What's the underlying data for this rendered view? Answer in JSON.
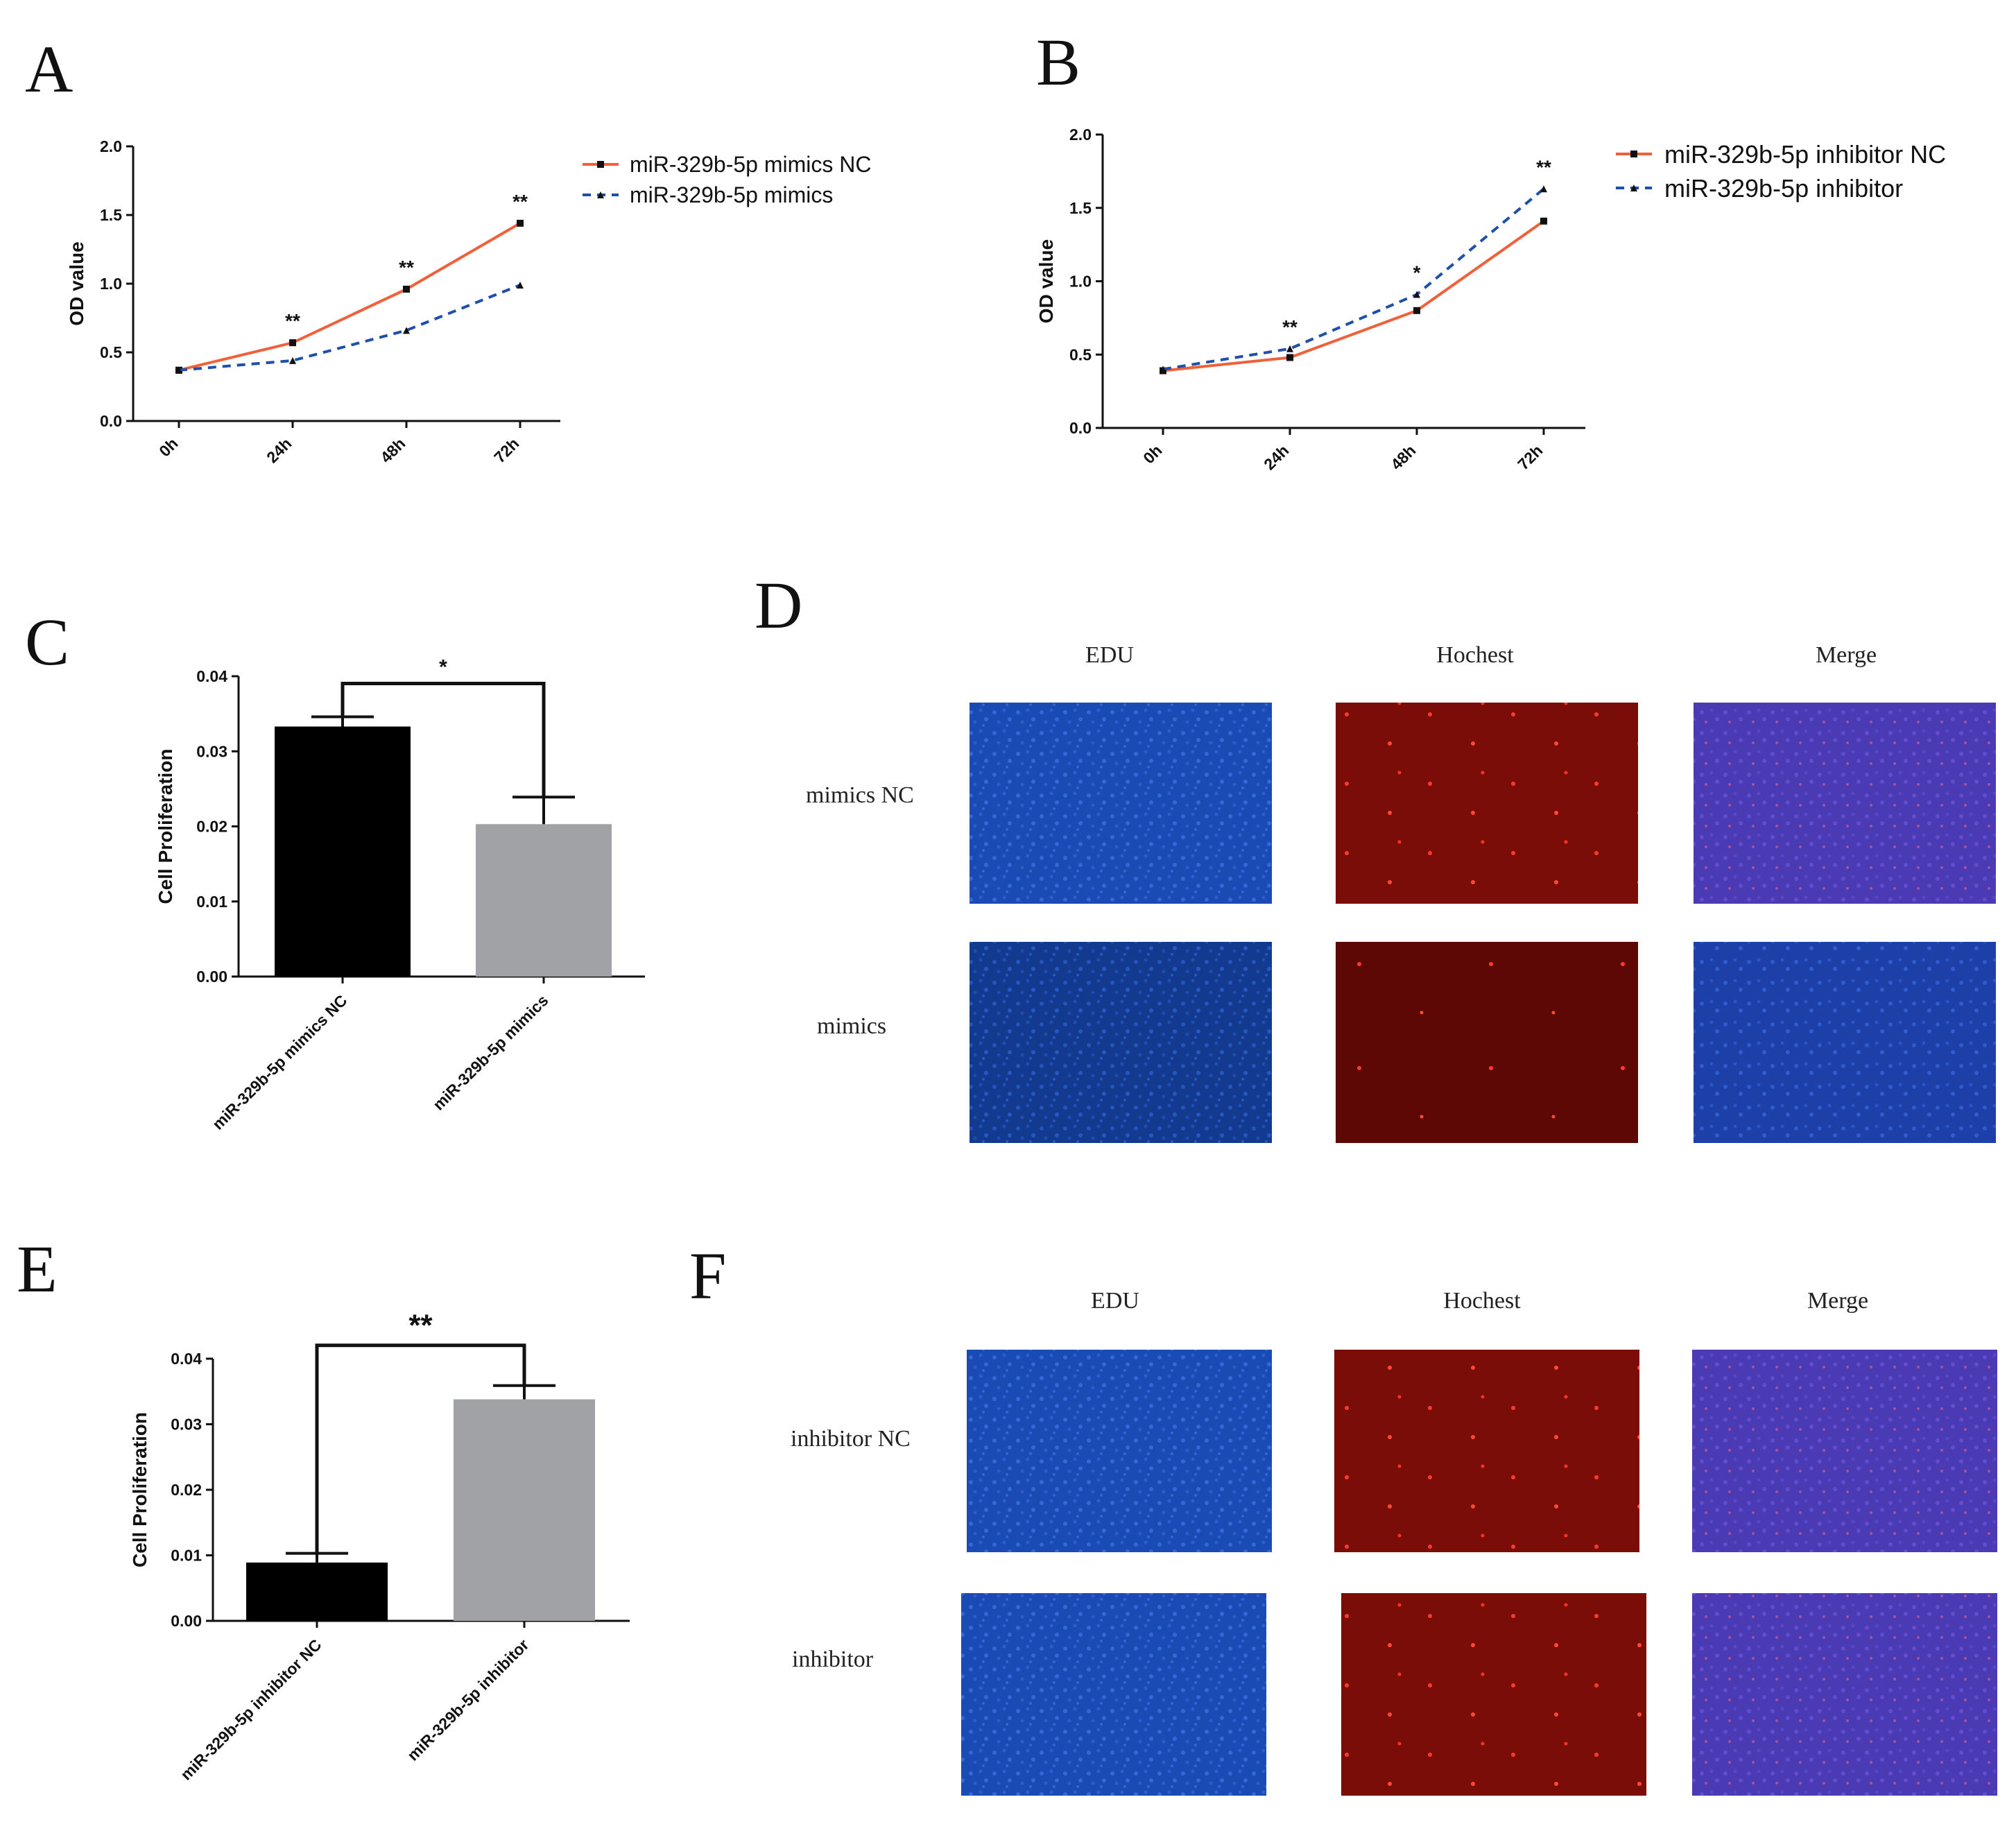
{
  "panels": {
    "A": "A",
    "B": "B",
    "C": "C",
    "D": "D",
    "E": "E",
    "F": "F"
  },
  "colors": {
    "nc_line": "#f0603a",
    "treat_line": "#1f4fa8",
    "bar_dark": "#000000",
    "bar_grey": "#a0a2a6"
  },
  "chart_data": [
    {
      "id": "A",
      "type": "line",
      "ylabel": "OD value",
      "categories": [
        "0h",
        "24h",
        "48h",
        "72h"
      ],
      "ylim": [
        0,
        2.0
      ],
      "yticks": [
        "0.0",
        "0.5",
        "1.0",
        "1.5",
        "2.0"
      ],
      "series": [
        {
          "name": "miR-329b-5p mimics NC",
          "values": [
            0.37,
            0.57,
            0.96,
            1.44
          ]
        },
        {
          "name": "miR-329b-5p mimics",
          "values": [
            0.37,
            0.44,
            0.66,
            0.99
          ]
        }
      ],
      "significance": [
        "",
        "**",
        "**",
        "**"
      ]
    },
    {
      "id": "B",
      "type": "line",
      "ylabel": "OD value",
      "categories": [
        "0h",
        "24h",
        "48h",
        "72h"
      ],
      "ylim": [
        0,
        2.0
      ],
      "yticks": [
        "0.0",
        "0.5",
        "1.0",
        "1.5",
        "2.0"
      ],
      "series": [
        {
          "name": "miR-329b-5p inhibitor NC",
          "values": [
            0.39,
            0.48,
            0.8,
            1.41
          ]
        },
        {
          "name": "miR-329b-5p inhibitor",
          "values": [
            0.4,
            0.54,
            0.91,
            1.63
          ]
        }
      ],
      "significance": [
        "",
        "**",
        "*",
        "**"
      ]
    },
    {
      "id": "C",
      "type": "bar",
      "ylabel": "Cell Proliferation",
      "categories": [
        "miR-329b-5p mimics NC",
        "miR-329b-5p mimics"
      ],
      "values": [
        0.0333,
        0.0203
      ],
      "errors": [
        0.0013,
        0.0036
      ],
      "ylim": [
        0,
        0.04
      ],
      "yticks": [
        "0.00",
        "0.01",
        "0.02",
        "0.03",
        "0.04"
      ],
      "significance": "*"
    },
    {
      "id": "E",
      "type": "bar",
      "ylabel": "Cell Proliferation",
      "categories": [
        "miR-329b-5p inhibitor NC",
        "miR-329b-5p inhibitor"
      ],
      "values": [
        0.0089,
        0.0338
      ],
      "errors": [
        0.0014,
        0.0021
      ],
      "ylim": [
        0,
        0.04
      ],
      "yticks": [
        "0.00",
        "0.01",
        "0.02",
        "0.03",
        "0.04"
      ],
      "significance": "**"
    }
  ],
  "micrographs": {
    "D": {
      "columns": [
        "EDU",
        "Hochest",
        "Merge"
      ],
      "rows": [
        "mimics NC",
        "mimics"
      ]
    },
    "F": {
      "columns": [
        "EDU",
        "Hochest",
        "Merge"
      ],
      "rows": [
        "inhibitor NC",
        "inhibitor"
      ]
    }
  }
}
